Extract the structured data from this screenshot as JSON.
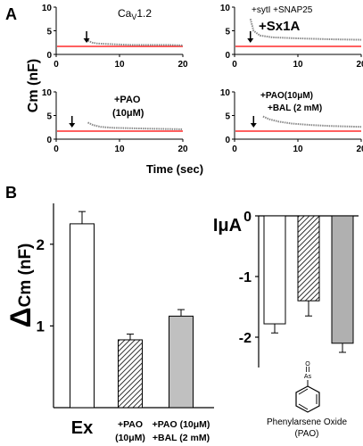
{
  "panel_labels": {
    "a": "A",
    "b": "B"
  },
  "panel_a": {
    "ylabel": "Cm (nF)",
    "xlabel": "Time (sec)",
    "subplots": [
      {
        "title": "Ca",
        "title_sub": "V",
        "title_rest": "1.2",
        "title2": "",
        "title3": "",
        "arrow_x": 4.8,
        "trace": [
          [
            5.0,
            2.9
          ],
          [
            5.7,
            2.5
          ],
          [
            6.5,
            2.3
          ],
          [
            8,
            2.2
          ],
          [
            10,
            2.1
          ],
          [
            12,
            2.0
          ],
          [
            15,
            2.0
          ],
          [
            18,
            2.0
          ],
          [
            20,
            1.9
          ]
        ]
      },
      {
        "title": "+sytI +SNAP25",
        "title_sub": "",
        "title_rest": "",
        "title2": "+Sx1A",
        "title3": "",
        "arrow_x": 2.5,
        "trace": [
          [
            2.5,
            7.5
          ],
          [
            3.0,
            5.0
          ],
          [
            4.0,
            4.0
          ],
          [
            6,
            3.6
          ],
          [
            10,
            3.4
          ],
          [
            15,
            3.2
          ],
          [
            20,
            3.1
          ]
        ]
      },
      {
        "title": "+PAO",
        "title_sub": "",
        "title_rest": "",
        "title2": "(10μM)",
        "title3": "",
        "arrow_x": 2.5,
        "trace": [
          [
            5.0,
            3.5
          ],
          [
            5.8,
            3.0
          ],
          [
            7,
            2.6
          ],
          [
            9,
            2.4
          ],
          [
            12,
            2.3
          ],
          [
            15,
            2.2
          ],
          [
            20,
            2.1
          ]
        ]
      },
      {
        "title": "+PAO(10μM)",
        "title_sub": "",
        "title_rest": "",
        "title2": "+BAL (2 mM)",
        "title3": "",
        "arrow_x": 3.0,
        "trace": [
          [
            4.5,
            4.8
          ],
          [
            5.5,
            4.2
          ],
          [
            7,
            3.7
          ],
          [
            9,
            3.3
          ],
          [
            12,
            3.0
          ],
          [
            15,
            2.8
          ],
          [
            20,
            2.6
          ]
        ]
      }
    ],
    "x_ticks": [
      "0",
      "10",
      "20"
    ],
    "y_ticks": [
      "0",
      "5",
      "10"
    ],
    "baseline_value": 1.7
  },
  "chart_data": [
    {
      "type": "bar",
      "ylabel": "ΔCm (nF)",
      "categories": [
        "Ex",
        "+PAO (10μM)",
        "+PAO (10μM) +BAL (2 mM)"
      ],
      "category_lines": [
        [
          "Ex"
        ],
        [
          "+PAO",
          "(10μM)"
        ],
        [
          "+PAO (10μM)",
          "+BAL (2 mM)"
        ]
      ],
      "values": [
        2.25,
        0.83,
        1.12
      ],
      "errors": [
        0.15,
        0.07,
        0.08
      ],
      "fills": [
        "white",
        "hatched",
        "#c0c0c0"
      ],
      "y_ticks": [
        "2",
        "1"
      ],
      "ylim": [
        0,
        2.5
      ]
    },
    {
      "type": "bar",
      "ylabel": "IμA",
      "values": [
        -1.78,
        -1.4,
        -2.1
      ],
      "errors": [
        0.15,
        0.25,
        0.15
      ],
      "fills": [
        "white",
        "hatched",
        "#b0b0b0"
      ],
      "y_ticks": [
        "0",
        "-1",
        "-2"
      ],
      "ylim": [
        -2.5,
        0
      ]
    }
  ],
  "compound": {
    "name": "Phenylarsene Oxide",
    "abbr": "(PAO)",
    "atom_o": "O",
    "atom_as": "As"
  },
  "colors": {
    "baseline": "#ff0000",
    "trace": "#888888",
    "gray_bar": "#c0c0c0",
    "gray_bar_2": "#b0b0b0"
  }
}
